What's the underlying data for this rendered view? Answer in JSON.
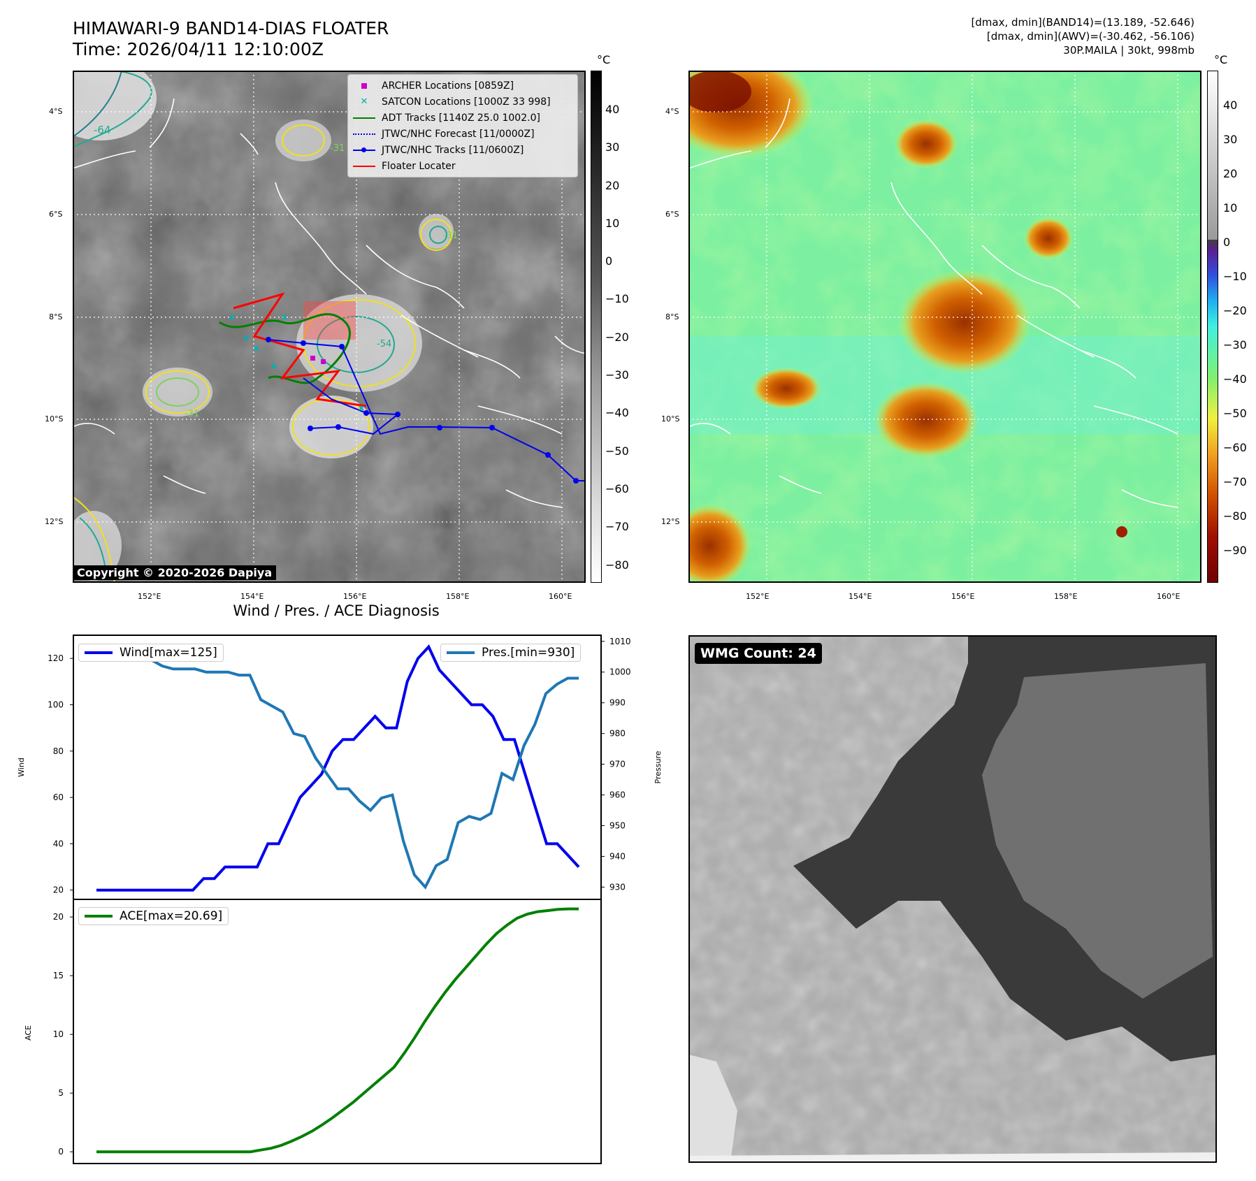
{
  "header": {
    "title": "HIMAWARI-9 BAND14-DIAS FLOATER",
    "time": "Time: 2026/04/11 12:10:00Z",
    "stats_band14": "[dmax, dmin](BAND14)=(13.189, -52.646)",
    "stats_awv": "[dmax, dmin](AWV)=(-30.462, -56.106)",
    "storm": "30P.MAILA | 30kt, 998mb"
  },
  "map": {
    "lon_ticks": [
      "152°E",
      "154°E",
      "156°E",
      "158°E",
      "160°E"
    ],
    "lat_ticks": [
      "4°S",
      "6°S",
      "8°S",
      "10°S",
      "12°S"
    ],
    "contour_labels": [
      "-64",
      "-31",
      "-31",
      "-31",
      "-54"
    ],
    "copyright": "Copyright © 2020-2026 Dapiya",
    "legend": [
      {
        "label": "ARCHER Locations [0859Z]",
        "color": "#cc00cc",
        "marker": "square"
      },
      {
        "label": "SATCON Locations [1000Z 33 998]",
        "color": "#00b0b0",
        "marker": "x"
      },
      {
        "label": "ADT Tracks [1140Z 25.0 1002.0]",
        "color": "#008000",
        "marker": "line"
      },
      {
        "label": "JTWC/NHC Forecast [11/0000Z]",
        "color": "#0000ee",
        "marker": "dotted"
      },
      {
        "label": "JTWC/NHC Tracks [11/0600Z]",
        "color": "#0000ee",
        "marker": "line-dot"
      },
      {
        "label": "Floater Locater",
        "color": "#ff0000",
        "marker": "line"
      }
    ]
  },
  "colorbar_gray": {
    "unit": "°C",
    "ticks": [
      "40",
      "30",
      "20",
      "10",
      "0",
      "−10",
      "−20",
      "−30",
      "−40",
      "−50",
      "−60",
      "−70",
      "−80"
    ]
  },
  "colorbar_color": {
    "unit": "°C",
    "ticks": [
      "40",
      "30",
      "20",
      "10",
      "0",
      "−10",
      "−20",
      "−30",
      "−40",
      "−50",
      "−60",
      "−70",
      "−80",
      "−90"
    ]
  },
  "diagnosis": {
    "title": "Wind / Pres. / ACE Diagnosis",
    "wind_ylabel": "Wind",
    "pres_ylabel": "Pressure",
    "ace_ylabel": "ACE",
    "wind_legend": "Wind[max=125]",
    "pres_legend": "Pres.[min=930]",
    "ace_legend": "ACE[max=20.69]",
    "wind_ticks": [
      "20",
      "40",
      "60",
      "80",
      "100",
      "120"
    ],
    "pres_ticks": [
      "930",
      "940",
      "950",
      "960",
      "970",
      "980",
      "990",
      "1000",
      "1010"
    ],
    "ace_ticks": [
      "0",
      "5",
      "10",
      "15",
      "20"
    ]
  },
  "wmg": {
    "label": "WMG Count: 24"
  },
  "chart_data": [
    {
      "type": "line",
      "name": "wind",
      "ylim": [
        16,
        130
      ],
      "color": "#0000ee",
      "series": [
        {
          "name": "Wind[max=125]",
          "values": [
            20,
            20,
            20,
            20,
            20,
            20,
            20,
            20,
            20,
            20,
            25,
            25,
            30,
            30,
            30,
            30,
            40,
            40,
            50,
            60,
            65,
            70,
            80,
            85,
            85,
            90,
            95,
            90,
            90,
            110,
            120,
            125,
            115,
            110,
            105,
            100,
            100,
            95,
            85,
            85,
            70,
            55,
            40,
            40,
            35,
            30
          ]
        }
      ]
    },
    {
      "type": "line",
      "name": "pressure",
      "ylim": [
        926,
        1012
      ],
      "color": "#1f77b4",
      "series": [
        {
          "name": "Pres.[min=930]",
          "values": [
            1007,
            1007,
            1007,
            1007,
            1006,
            1004,
            1002,
            1001,
            1001,
            1001,
            1000,
            1000,
            1000,
            999,
            999,
            991,
            989,
            987,
            980,
            979,
            972,
            967,
            962,
            962,
            958,
            955,
            959,
            960,
            945,
            934,
            930,
            937,
            939,
            951,
            953,
            952,
            954,
            967,
            965,
            976,
            983,
            993,
            996,
            998,
            998
          ]
        }
      ]
    },
    {
      "type": "line",
      "name": "ace",
      "ylim": [
        -1,
        21.5
      ],
      "color": "#008000",
      "series": [
        {
          "name": "ACE[max=20.69]",
          "values": [
            0,
            0,
            0,
            0,
            0,
            0,
            0,
            0,
            0,
            0,
            0,
            0,
            0,
            0,
            0,
            0,
            0.15,
            0.3,
            0.55,
            0.9,
            1.3,
            1.75,
            2.3,
            2.9,
            3.55,
            4.2,
            4.95,
            5.7,
            6.45,
            7.2,
            8.4,
            9.7,
            11.1,
            12.4,
            13.6,
            14.7,
            15.7,
            16.7,
            17.7,
            18.6,
            19.3,
            19.9,
            20.25,
            20.45,
            20.55,
            20.65,
            20.69,
            20.69
          ]
        }
      ]
    }
  ]
}
